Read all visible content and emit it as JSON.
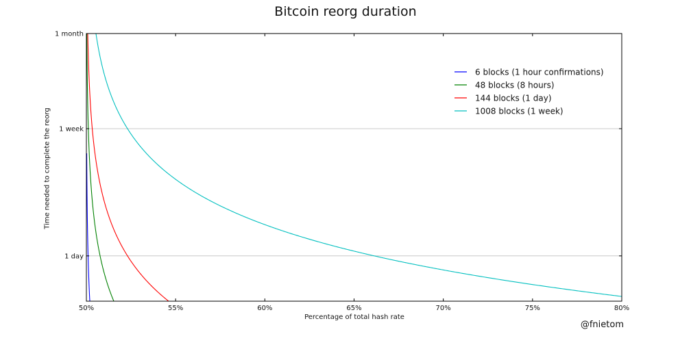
{
  "chart_data": {
    "type": "line",
    "title": "Bitcoin reorg duration",
    "xlabel": "Percentage of total hash rate",
    "ylabel": "Time needed to complete the reorg",
    "xlim": [
      0.5,
      0.8
    ],
    "ylim_days": [
      0.5,
      30
    ],
    "y_scale": "log",
    "x_ticks": [
      {
        "value": 0.5,
        "label": "50%"
      },
      {
        "value": 0.55,
        "label": "55%"
      },
      {
        "value": 0.6,
        "label": "60%"
      },
      {
        "value": 0.65,
        "label": "65%"
      },
      {
        "value": 0.7,
        "label": "70%"
      },
      {
        "value": 0.75,
        "label": "75%"
      },
      {
        "value": 0.8,
        "label": "80%"
      }
    ],
    "y_ticks": [
      {
        "value_days": 1,
        "label": "1 day"
      },
      {
        "value_days": 7,
        "label": "1 week"
      },
      {
        "value_days": 30,
        "label": "1 month"
      }
    ],
    "grid": true,
    "legend_position": "top-right",
    "series": [
      {
        "name": "6 blocks (1 hour confirmations)",
        "blocks": 6,
        "color": "#0000ff"
      },
      {
        "name": "48 blocks (8 hours)",
        "blocks": 48,
        "color": "#008000"
      },
      {
        "name": "144 blocks (1 day)",
        "blocks": 144,
        "color": "#ff0000"
      },
      {
        "name": "1008 blocks (1 week)",
        "blocks": 1008,
        "color": "#00bfbf"
      }
    ]
  },
  "credit": "@fnietom"
}
